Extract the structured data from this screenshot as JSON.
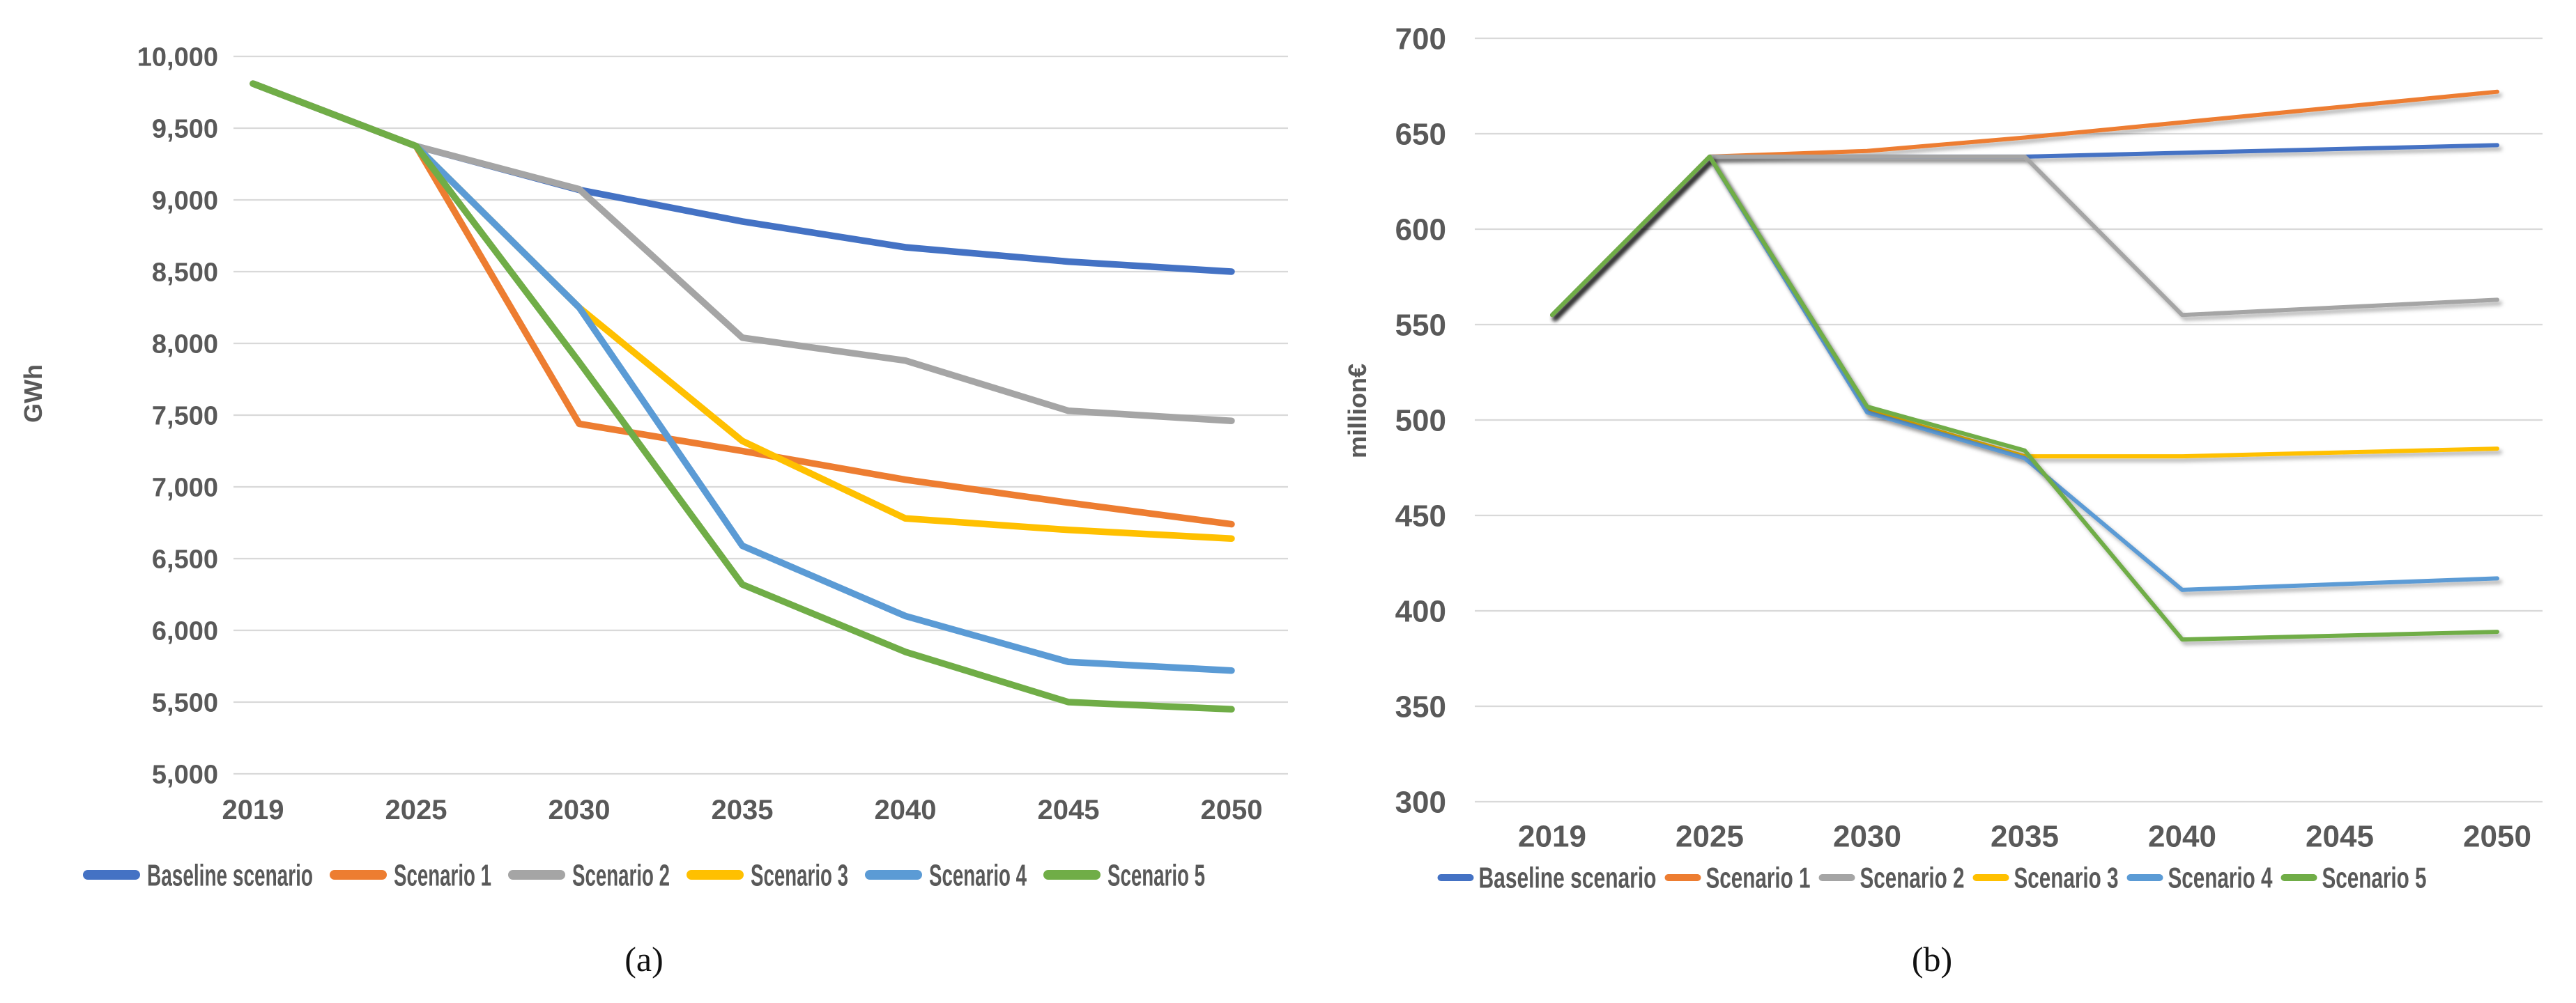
{
  "figure": {
    "caption_a": "(a)",
    "caption_b": "(b)"
  },
  "chart_data": [
    {
      "id": "a",
      "type": "line",
      "title": "",
      "xlabel": "",
      "ylabel": "GWh",
      "grid": true,
      "legend_position": "bottom",
      "categories": [
        "2019",
        "2025",
        "2030",
        "2035",
        "2040",
        "2045",
        "2050"
      ],
      "ylim": [
        5000,
        10000
      ],
      "ytick_step": 500,
      "ytick_labels": [
        "10,000",
        "9,500",
        "9,000",
        "8,500",
        "8,000",
        "7,500",
        "7,000",
        "6,500",
        "6,000",
        "5,500",
        "5,000"
      ],
      "series": [
        {
          "name": "Baseline scenario",
          "color": "#4472C4",
          "values": [
            9810,
            9375,
            9070,
            8850,
            8670,
            8570,
            8500
          ]
        },
        {
          "name": "Scenario 1",
          "color": "#ED7D31",
          "values": [
            9810,
            9375,
            7440,
            7250,
            7050,
            6890,
            6740
          ]
        },
        {
          "name": "Scenario 2",
          "color": "#A5A5A5",
          "values": [
            9810,
            9375,
            9075,
            8040,
            7880,
            7530,
            7460
          ]
        },
        {
          "name": "Scenario 3",
          "color": "#FFC000",
          "values": [
            9810,
            9375,
            8250,
            7320,
            6780,
            6700,
            6640
          ]
        },
        {
          "name": "Scenario 4",
          "color": "#5B9BD5",
          "values": [
            9810,
            9375,
            8250,
            6590,
            6100,
            5780,
            5720
          ]
        },
        {
          "name": "Scenario 5",
          "color": "#70AD47",
          "values": [
            9810,
            9375,
            7870,
            6320,
            5850,
            5500,
            5450
          ]
        }
      ]
    },
    {
      "id": "b",
      "type": "line",
      "title": "",
      "xlabel": "",
      "ylabel": "million€",
      "grid": true,
      "legend_position": "bottom",
      "categories": [
        "2019",
        "2025",
        "2030",
        "2035",
        "2040",
        "2045",
        "2050"
      ],
      "ylim": [
        300,
        700
      ],
      "ytick_step": 50,
      "ytick_labels": [
        "700",
        "650",
        "600",
        "550",
        "500",
        "450",
        "400",
        "350",
        "300"
      ],
      "series": [
        {
          "name": "Baseline scenario",
          "color": "#4472C4",
          "values": [
            555,
            638,
            638,
            638,
            640,
            642,
            644
          ]
        },
        {
          "name": "Scenario 1",
          "color": "#ED7D31",
          "values": [
            555,
            638,
            641,
            648,
            656,
            664,
            672
          ]
        },
        {
          "name": "Scenario 2",
          "color": "#A5A5A5",
          "values": [
            555,
            638,
            638,
            638,
            555,
            559,
            563
          ]
        },
        {
          "name": "Scenario 3",
          "color": "#FFC000",
          "values": [
            555,
            638,
            505,
            481,
            481,
            483,
            485
          ]
        },
        {
          "name": "Scenario 4",
          "color": "#5B9BD5",
          "values": [
            555,
            638,
            504,
            480,
            411,
            414,
            417
          ]
        },
        {
          "name": "Scenario 5",
          "color": "#70AD47",
          "values": [
            555,
            638,
            507,
            484,
            385,
            387,
            389
          ]
        }
      ]
    }
  ],
  "style": {
    "gridline_color": "#D9D9D9",
    "tick_label_color": "#595959",
    "legend_text_color": "#595959",
    "background_color": "#FFFFFF"
  }
}
